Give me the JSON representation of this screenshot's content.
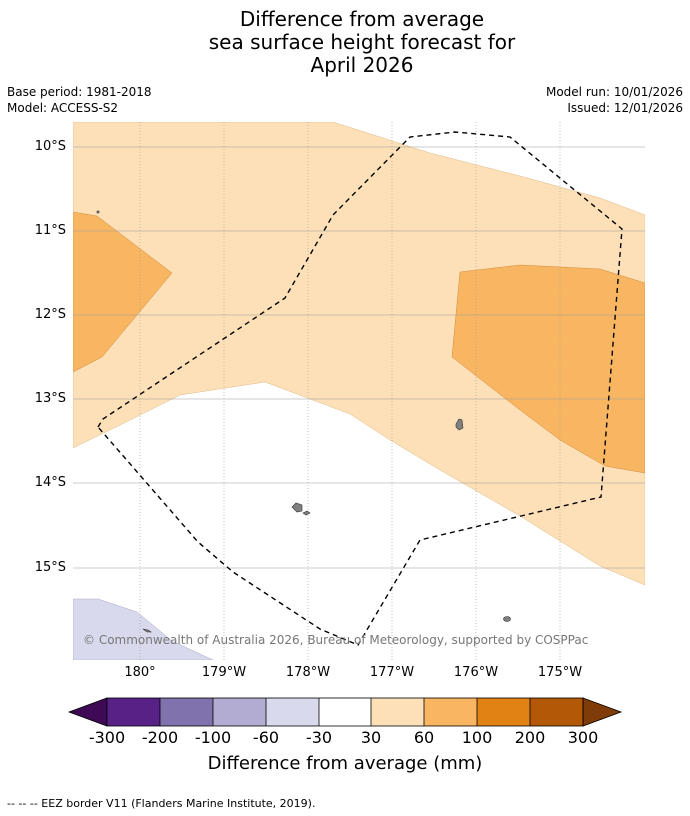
{
  "title": {
    "line1": "Difference from average",
    "line2": "sea surface height forecast for",
    "line3": "April 2026"
  },
  "meta": {
    "base_period": "Base period: 1981-2018",
    "model": "Model: ACCESS-S2",
    "model_run": "Model run: 10/01/2026",
    "issued": "Issued: 12/01/2026"
  },
  "map": {
    "latitude_labels": [
      "10°S",
      "11°S",
      "12°S",
      "13°S",
      "14°S",
      "15°S"
    ],
    "longitude_labels": [
      "180°",
      "179°W",
      "178°W",
      "177°W",
      "176°W",
      "175°W"
    ],
    "credit": "© Commonwealth of Australia 2026, Bureau of Meteorology, supported by COSPPac",
    "colors": {
      "band_30_60": "#fde0b8",
      "band_60_100": "#f9b662",
      "band_neg30_neg60": "#d8d9ec",
      "land": "#808080",
      "eez": "#000000",
      "grid": "#9a9a9a"
    }
  },
  "colorbar": {
    "ticks": [
      "-300",
      "-200",
      "-100",
      "-60",
      "-30",
      "30",
      "60",
      "100",
      "200",
      "300"
    ],
    "colors": [
      "#3f0a55",
      "#582186",
      "#8073ad",
      "#b2abd2",
      "#d8d9ec",
      "#ffffff",
      "#fde0b8",
      "#f9b662",
      "#e08214",
      "#b35806",
      "#7f3b08"
    ],
    "label": "Difference from average (mm)"
  },
  "legend": {
    "eez_line": "--  --  -- EEZ border V11 (Flanders Marine Institute, 2019)."
  }
}
